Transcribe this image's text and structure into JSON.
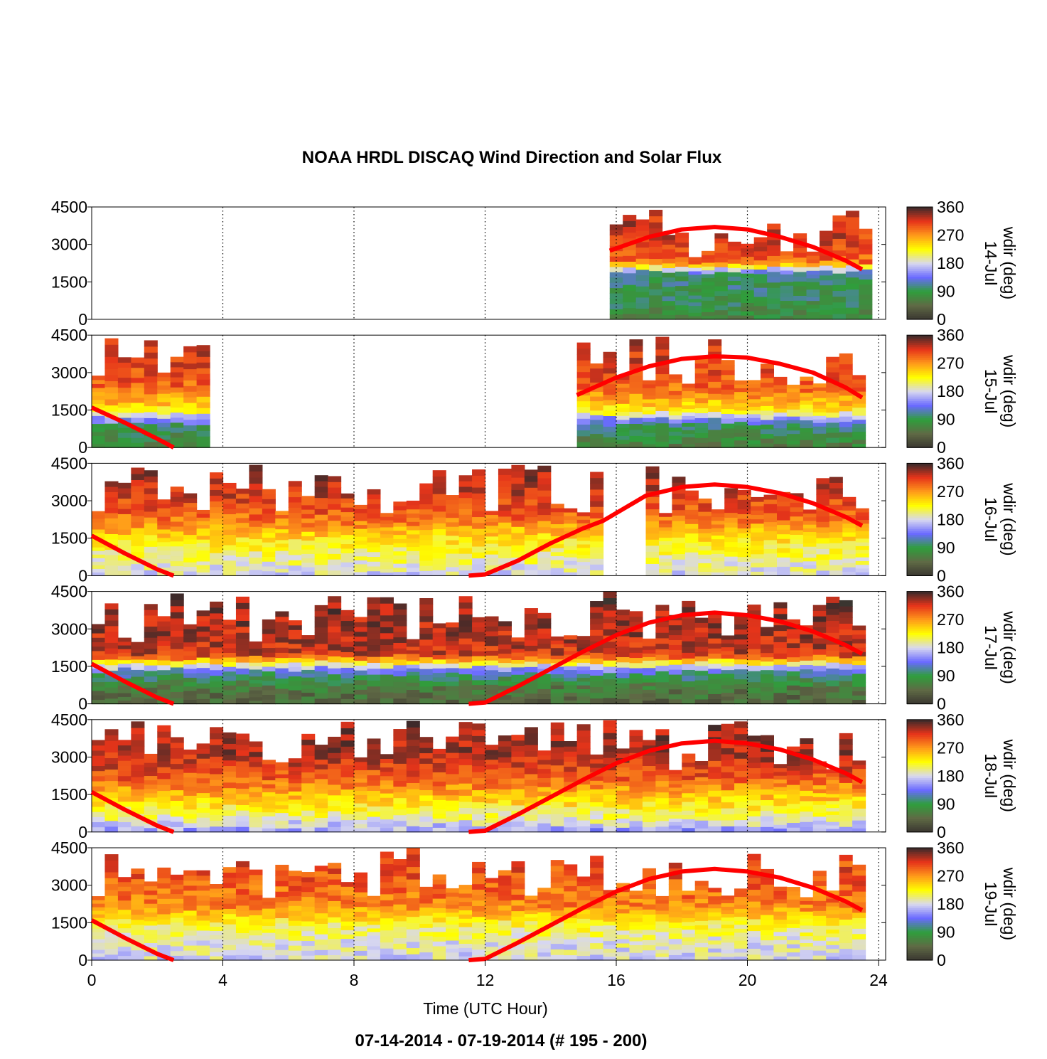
{
  "title": "NOAA HRDL DISCAQ Wind Direction and Solar Flux",
  "footer": "07-14-2014 - 07-19-2014   (# 195 - 200)",
  "colors": {
    "solar_flux_line": "#ff0000",
    "colormap": [
      "#3a3530",
      "#5f6a45",
      "#2f9e3c",
      "#6a6aff",
      "#d8d8f0",
      "#ffff00",
      "#ff9a1a",
      "#e6341a",
      "#3a2a2a"
    ]
  },
  "chart_data": [
    {
      "type": "heatmap",
      "panel_label": "14-Jul",
      "colorbar_label": "wdir (deg)",
      "xlabel": "Time (UTC Hour)",
      "xlim": [
        0,
        24
      ],
      "ylim": [
        0,
        4500
      ],
      "xticks": [
        0,
        4,
        8,
        12,
        16,
        20,
        24
      ],
      "yticks": [
        0,
        1500,
        3000,
        4500
      ],
      "colorbar_ticks": [
        0,
        90,
        180,
        270,
        360
      ],
      "data_coverage_hours": [
        [
          15.8,
          23.5
        ]
      ],
      "profile": [
        [
          0,
          70
        ],
        [
          800,
          90
        ],
        [
          1800,
          100
        ],
        [
          2300,
          290
        ],
        [
          3000,
          310
        ],
        [
          4500,
          330
        ]
      ],
      "solar_flux": [
        [
          15.8,
          2750
        ],
        [
          17,
          3300
        ],
        [
          18,
          3600
        ],
        [
          19,
          3700
        ],
        [
          20,
          3600
        ],
        [
          21,
          3300
        ],
        [
          22,
          2900
        ],
        [
          23,
          2350
        ],
        [
          23.5,
          2000
        ]
      ]
    },
    {
      "type": "heatmap",
      "panel_label": "15-Jul",
      "colorbar_label": "wdir (deg)",
      "xlabel": "Time (UTC Hour)",
      "xlim": [
        0,
        24
      ],
      "ylim": [
        0,
        4500
      ],
      "xticks": [
        0,
        4,
        8,
        12,
        16,
        20,
        24
      ],
      "yticks": [
        0,
        1500,
        3000,
        4500
      ],
      "colorbar_ticks": [
        0,
        90,
        180,
        270,
        360
      ],
      "data_coverage_hours": [
        [
          0,
          3.6
        ],
        [
          14.8,
          23.5
        ]
      ],
      "profile": [
        [
          0,
          60
        ],
        [
          900,
          100
        ],
        [
          1500,
          230
        ],
        [
          2300,
          290
        ],
        [
          3200,
          310
        ],
        [
          4500,
          330
        ]
      ],
      "solar_flux": [
        [
          0,
          1600
        ],
        [
          1,
          1000
        ],
        [
          2,
          350
        ],
        [
          2.5,
          0
        ],
        [
          14.8,
          2100
        ],
        [
          16,
          2800
        ],
        [
          17,
          3250
        ],
        [
          18,
          3550
        ],
        [
          19,
          3650
        ],
        [
          20,
          3600
        ],
        [
          21,
          3350
        ],
        [
          22,
          3000
        ],
        [
          23,
          2400
        ],
        [
          23.5,
          2000
        ]
      ]
    },
    {
      "type": "heatmap",
      "panel_label": "16-Jul",
      "colorbar_label": "wdir (deg)",
      "xlabel": "Time (UTC Hour)",
      "xlim": [
        0,
        24
      ],
      "ylim": [
        0,
        4500
      ],
      "xticks": [
        0,
        4,
        8,
        12,
        16,
        20,
        24
      ],
      "yticks": [
        0,
        1500,
        3000,
        4500
      ],
      "colorbar_ticks": [
        0,
        90,
        180,
        270,
        360
      ],
      "data_coverage_hours": [
        [
          0,
          15.6
        ],
        [
          16.9,
          23.5
        ]
      ],
      "profile": [
        [
          0,
          180
        ],
        [
          600,
          200
        ],
        [
          1400,
          230
        ],
        [
          2300,
          290
        ],
        [
          3300,
          320
        ],
        [
          4500,
          340
        ]
      ],
      "solar_flux": [
        [
          0,
          1600
        ],
        [
          1,
          900
        ],
        [
          2,
          250
        ],
        [
          2.5,
          0
        ],
        [
          11.5,
          0
        ],
        [
          12,
          50
        ],
        [
          13,
          600
        ],
        [
          14,
          1300
        ],
        [
          15,
          1900
        ],
        [
          15.6,
          2200
        ],
        [
          16.9,
          3200
        ],
        [
          18,
          3550
        ],
        [
          19,
          3650
        ],
        [
          20,
          3550
        ],
        [
          21,
          3300
        ],
        [
          22,
          2900
        ],
        [
          23,
          2350
        ],
        [
          23.5,
          2000
        ]
      ]
    },
    {
      "type": "heatmap",
      "panel_label": "17-Jul",
      "colorbar_label": "wdir (deg)",
      "xlabel": "Time (UTC Hour)",
      "xlim": [
        0,
        24
      ],
      "ylim": [
        0,
        4500
      ],
      "xticks": [
        0,
        4,
        8,
        12,
        16,
        20,
        24
      ],
      "yticks": [
        0,
        1500,
        3000,
        4500
      ],
      "colorbar_ticks": [
        0,
        90,
        180,
        270,
        360
      ],
      "data_coverage_hours": [
        [
          0,
          23.5
        ]
      ],
      "profile": [
        [
          0,
          40
        ],
        [
          700,
          60
        ],
        [
          1300,
          120
        ],
        [
          2000,
          320
        ],
        [
          3000,
          330
        ],
        [
          4500,
          340
        ]
      ],
      "solar_flux": [
        [
          0,
          1600
        ],
        [
          1,
          900
        ],
        [
          2,
          250
        ],
        [
          2.5,
          0
        ],
        [
          11.5,
          0
        ],
        [
          12,
          50
        ],
        [
          13,
          700
        ],
        [
          14,
          1400
        ],
        [
          15,
          2100
        ],
        [
          16,
          2750
        ],
        [
          17,
          3250
        ],
        [
          18,
          3550
        ],
        [
          19,
          3650
        ],
        [
          20,
          3550
        ],
        [
          21,
          3300
        ],
        [
          22,
          2900
        ],
        [
          23,
          2350
        ],
        [
          23.5,
          2000
        ]
      ]
    },
    {
      "type": "heatmap",
      "panel_label": "18-Jul",
      "colorbar_label": "wdir (deg)",
      "xlabel": "Time (UTC Hour)",
      "xlim": [
        0,
        24
      ],
      "ylim": [
        0,
        4500
      ],
      "xticks": [
        0,
        4,
        8,
        12,
        16,
        20,
        24
      ],
      "yticks": [
        0,
        1500,
        3000,
        4500
      ],
      "colorbar_ticks": [
        0,
        90,
        180,
        270,
        360
      ],
      "data_coverage_hours": [
        [
          0,
          23.5
        ]
      ],
      "profile": [
        [
          0,
          150
        ],
        [
          600,
          200
        ],
        [
          1400,
          250
        ],
        [
          2200,
          300
        ],
        [
          3200,
          330
        ],
        [
          4500,
          340
        ]
      ],
      "solar_flux": [
        [
          0,
          1600
        ],
        [
          1,
          900
        ],
        [
          2,
          250
        ],
        [
          2.5,
          0
        ],
        [
          11.5,
          0
        ],
        [
          12,
          50
        ],
        [
          13,
          700
        ],
        [
          14,
          1400
        ],
        [
          15,
          2100
        ],
        [
          16,
          2750
        ],
        [
          17,
          3250
        ],
        [
          18,
          3550
        ],
        [
          19,
          3650
        ],
        [
          20,
          3550
        ],
        [
          21,
          3300
        ],
        [
          22,
          2900
        ],
        [
          23,
          2350
        ],
        [
          23.5,
          2000
        ]
      ]
    },
    {
      "type": "heatmap",
      "panel_label": "19-Jul",
      "colorbar_label": "wdir (deg)",
      "xlabel": "Time (UTC Hour)",
      "xlim": [
        0,
        24
      ],
      "ylim": [
        0,
        4500
      ],
      "xticks": [
        0,
        4,
        8,
        12,
        16,
        20,
        24
      ],
      "yticks": [
        0,
        1500,
        3000,
        4500
      ],
      "colorbar_ticks": [
        0,
        90,
        180,
        270,
        360
      ],
      "data_coverage_hours": [
        [
          0,
          23.5
        ]
      ],
      "profile": [
        [
          0,
          180
        ],
        [
          700,
          190
        ],
        [
          1500,
          220
        ],
        [
          2200,
          280
        ],
        [
          3200,
          300
        ],
        [
          4500,
          310
        ]
      ],
      "solar_flux": [
        [
          0,
          1600
        ],
        [
          1,
          900
        ],
        [
          2,
          250
        ],
        [
          2.5,
          0
        ],
        [
          11.5,
          0
        ],
        [
          12,
          50
        ],
        [
          13,
          700
        ],
        [
          14,
          1400
        ],
        [
          15,
          2100
        ],
        [
          16,
          2750
        ],
        [
          17,
          3250
        ],
        [
          18,
          3550
        ],
        [
          19,
          3650
        ],
        [
          20,
          3550
        ],
        [
          21,
          3300
        ],
        [
          22,
          2900
        ],
        [
          23,
          2350
        ],
        [
          23.5,
          2000
        ]
      ]
    }
  ]
}
